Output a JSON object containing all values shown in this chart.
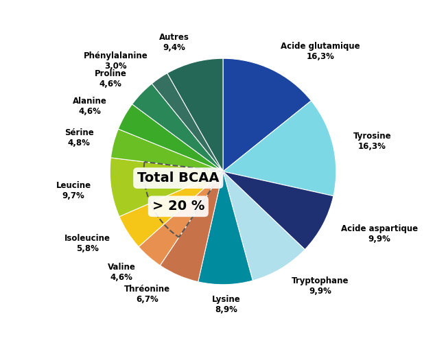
{
  "labels": [
    "Acide glutamique",
    "Tyrosine",
    "Acide aspartique",
    "Tryptophane",
    "Lysine",
    "Thréonine",
    "Valine",
    "Isoleucine",
    "Leucine",
    "Sérine",
    "Alanine",
    "Proline",
    "Phénylalanine",
    "Autres"
  ],
  "values": [
    16.3,
    16.3,
    9.9,
    9.9,
    8.9,
    6.7,
    4.6,
    5.8,
    9.7,
    4.8,
    4.6,
    4.6,
    3.0,
    9.4
  ],
  "colors": [
    "#1b45a0",
    "#7dd8e6",
    "#1e2f72",
    "#b0e0ec",
    "#008b9e",
    "#c8724a",
    "#e89050",
    "#f5c518",
    "#a8cc20",
    "#6abf25",
    "#3aaa28",
    "#2a8858",
    "#357060",
    "#266858"
  ],
  "pct_labels": [
    "16,3%",
    "16,3%",
    "9,9%",
    "9,9%",
    "8,9%",
    "6,7%",
    "4,6%",
    "5,8%",
    "9,7%",
    "4,8%",
    "4,6%",
    "4,6%",
    "3,0%",
    "9,4%"
  ],
  "bcaa_text_line1": "Total BCAA",
  "bcaa_text_line2": "> 20 %",
  "startangle": 90,
  "figsize": [
    6.5,
    5.0
  ],
  "dpi": 100,
  "label_fontsize": 8.5,
  "bcaa_fontsize": 14
}
